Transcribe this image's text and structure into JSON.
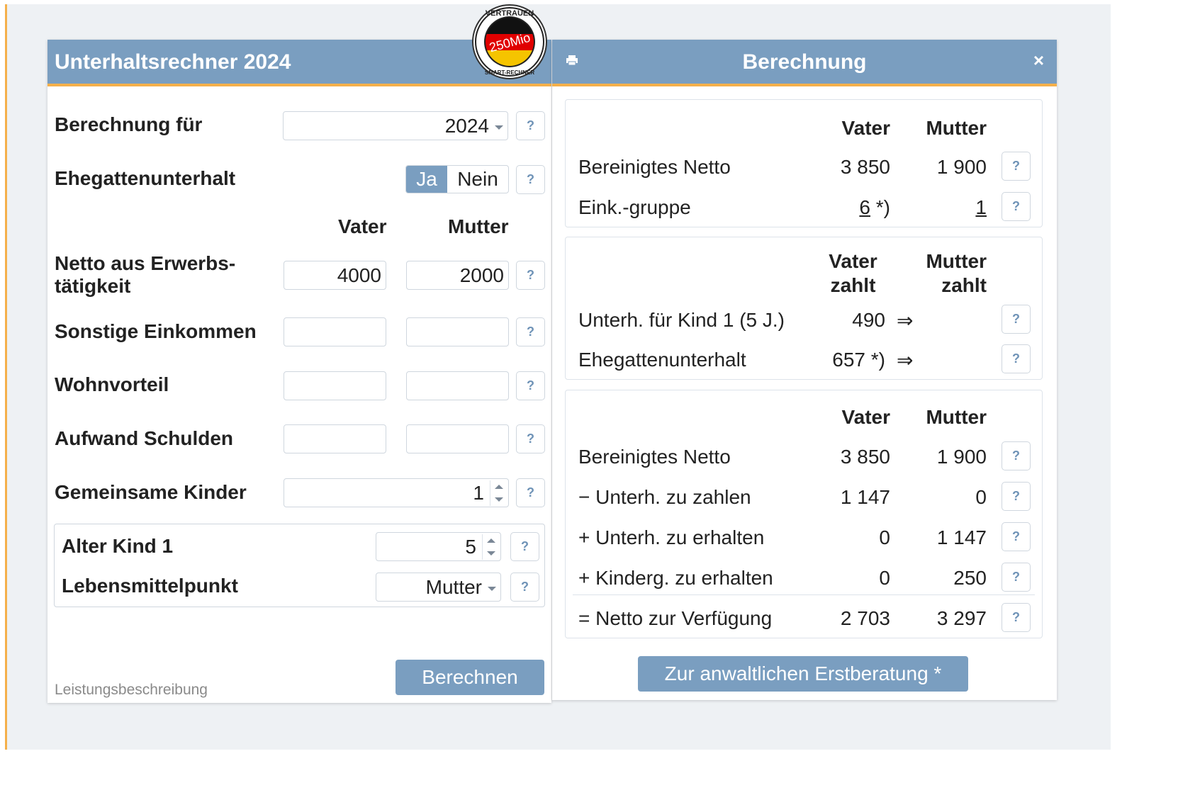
{
  "left": {
    "title": "Unterhaltsrechner 2024",
    "berechnung_fuer_label": "Berechnung für",
    "year_value": "2024",
    "ehegatten_label": "Ehegattenunterhalt",
    "ja": "Ja",
    "nein": "Nein",
    "col_vater": "Vater",
    "col_mutter": "Mutter",
    "netto_label_1": "Netto aus Erwerbs-",
    "netto_label_2": "tätigkeit",
    "netto_vater": "4000",
    "netto_mutter": "2000",
    "sonstige_label": "Sonstige Einkommen",
    "wohnvorteil_label": "Wohnvorteil",
    "aufwand_label": "Aufwand Schulden",
    "kinder_label": "Gemeinsame Kinder",
    "kinder_value": "1",
    "alter_label": "Alter Kind 1",
    "alter_value": "5",
    "lebens_label": "Lebensmittelpunkt",
    "lebens_value": "Mutter",
    "berechnen": "Berechnen",
    "leistung": "Leistungsbeschreibung",
    "help": "?"
  },
  "badge": {
    "top_text": "VERTRAUEN",
    "mid_text": "250Mio",
    "bottom_text": "SMART-RECHNER"
  },
  "right": {
    "title": "Berechnung",
    "close": "×",
    "box1": {
      "col_vater": "Vater",
      "col_mutter": "Mutter",
      "row1_label": "Bereinigtes Netto",
      "row1_vater": "3 850",
      "row1_mutter": "1 900",
      "row2_label": "Eink.-gruppe",
      "row2_vater": "6",
      "row2_vater_suffix": " *)",
      "row2_mutter": "1"
    },
    "box2": {
      "col_vater_1": "Vater",
      "col_vater_2": "zahlt",
      "col_mutter_1": "Mutter",
      "col_mutter_2": "zahlt",
      "row1_label": "Unterh. für Kind 1 (5 J.)",
      "row1_vater": "490",
      "row2_label": "Ehegattenunterhalt",
      "row2_vater": "657 *)",
      "arrow": "⇒"
    },
    "box3": {
      "col_vater": "Vater",
      "col_mutter": "Mutter",
      "rows": [
        {
          "label": "Bereinigtes Netto",
          "vater": "3 850",
          "mutter": "1 900"
        },
        {
          "label": "− Unterh. zu zahlen",
          "vater": "1 147",
          "mutter": "0"
        },
        {
          "label": "+ Unterh. zu erhalten",
          "vater": "0",
          "mutter": "1 147"
        },
        {
          "label": "+ Kinderg. zu erhalten",
          "vater": "0",
          "mutter": "250"
        },
        {
          "label": "= Netto zur Verfügung",
          "vater": "2 703",
          "mutter": "3 297"
        }
      ]
    },
    "erstberatung": "Zur anwaltlichen Erstberatung *"
  }
}
